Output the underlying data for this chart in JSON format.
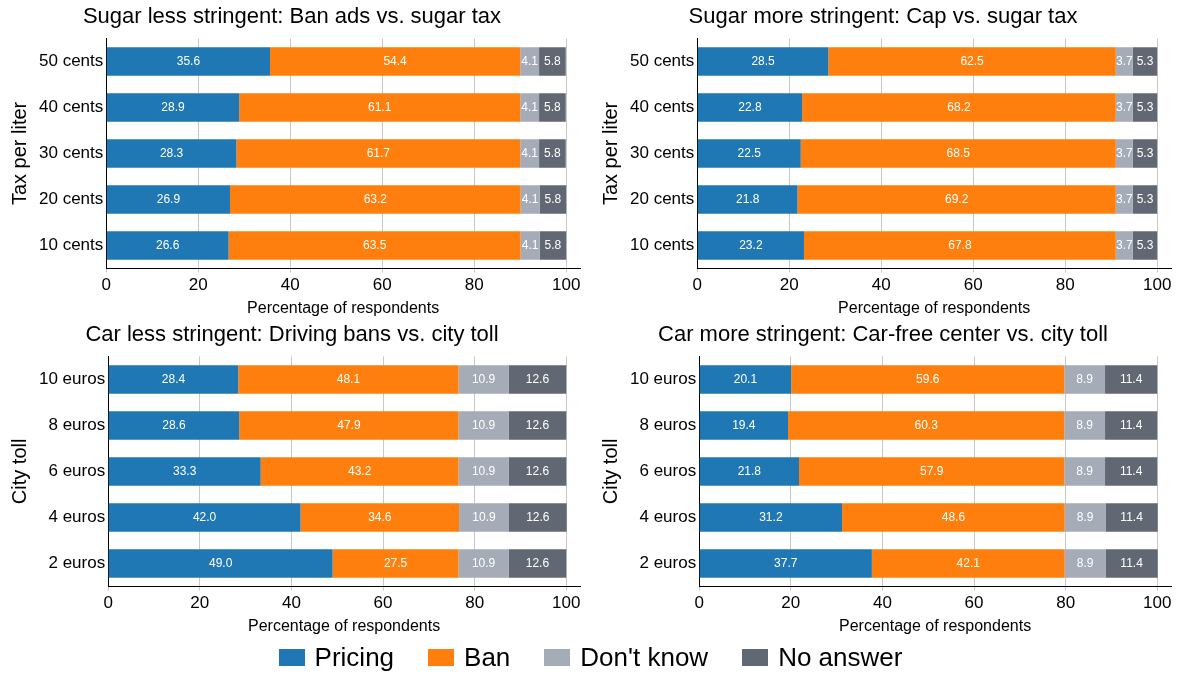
{
  "chart_data": [
    {
      "type": "bar",
      "orientation": "horizontal",
      "stacked": true,
      "title": "Sugar less stringent: Ban ads vs. sugar tax",
      "xlabel": "Percentage of respondents",
      "ylabel": "Tax per liter",
      "categories": [
        "50 cents",
        "40 cents",
        "30 cents",
        "20 cents",
        "10 cents"
      ],
      "xlim": [
        0,
        103
      ],
      "xticks": [
        0,
        20,
        40,
        60,
        80,
        100
      ],
      "grid": "x",
      "data_labels": true,
      "legend": "bottom",
      "series": [
        {
          "name": "Pricing",
          "color": "#1f77b4",
          "values": [
            35.6,
            28.9,
            28.3,
            26.9,
            26.6
          ]
        },
        {
          "name": "Ban",
          "color": "#ff7f0e",
          "values": [
            54.4,
            61.1,
            61.7,
            63.2,
            63.5
          ]
        },
        {
          "name": "Don't know",
          "color": "#a5acb8",
          "values": [
            4.1,
            4.1,
            4.1,
            4.1,
            4.1
          ]
        },
        {
          "name": "No answer",
          "color": "#626873",
          "values": [
            5.8,
            5.8,
            5.8,
            5.8,
            5.8
          ]
        }
      ]
    },
    {
      "type": "bar",
      "orientation": "horizontal",
      "stacked": true,
      "title": "Sugar more stringent: Cap vs. sugar tax",
      "xlabel": "Percentage of respondents",
      "ylabel": "Tax per liter",
      "categories": [
        "50 cents",
        "40 cents",
        "30 cents",
        "20 cents",
        "10 cents"
      ],
      "xlim": [
        0,
        103
      ],
      "xticks": [
        0,
        20,
        40,
        60,
        80,
        100
      ],
      "grid": "x",
      "data_labels": true,
      "series": [
        {
          "color": "#1f77b4",
          "values": [
            28.5,
            22.8,
            22.5,
            21.8,
            23.2
          ]
        },
        {
          "color": "#ff7f0e",
          "values": [
            62.5,
            68.2,
            68.5,
            69.2,
            67.8
          ]
        },
        {
          "color": "#a5acb8",
          "values": [
            3.7,
            3.7,
            3.7,
            3.7,
            3.7
          ]
        },
        {
          "color": "#626873",
          "values": [
            5.3,
            5.3,
            5.3,
            5.3,
            5.3
          ]
        }
      ]
    },
    {
      "type": "bar",
      "orientation": "horizontal",
      "stacked": true,
      "title": "Car less stringent: Driving bans vs. city toll",
      "xlabel": "Percentage of respondents",
      "ylabel": "City toll",
      "categories": [
        "10 euros",
        "8 euros",
        "6 euros",
        "4 euros",
        "2 euros"
      ],
      "xlim": [
        0,
        103
      ],
      "xticks": [
        0,
        20,
        40,
        60,
        80,
        100
      ],
      "grid": "x",
      "data_labels": true,
      "series": [
        {
          "color": "#1f77b4",
          "values": [
            28.4,
            28.6,
            33.3,
            42.0,
            49.0
          ],
          "value_labels": [
            "28.4",
            "28.6",
            "33.3",
            "42.0",
            "49.0"
          ]
        },
        {
          "color": "#ff7f0e",
          "values": [
            48.1,
            47.9,
            43.2,
            34.6,
            27.5
          ]
        },
        {
          "color": "#a5acb8",
          "values": [
            10.9,
            10.9,
            10.9,
            10.9,
            10.9
          ]
        },
        {
          "color": "#626873",
          "values": [
            12.6,
            12.6,
            12.6,
            12.6,
            12.6
          ]
        }
      ]
    },
    {
      "type": "bar",
      "orientation": "horizontal",
      "stacked": true,
      "title": "Car more stringent: Car-free center vs. city toll",
      "xlabel": "Percentage of respondents",
      "ylabel": "City toll",
      "categories": [
        "10 euros",
        "8 euros",
        "6 euros",
        "4 euros",
        "2 euros"
      ],
      "xlim": [
        0,
        103
      ],
      "xticks": [
        0,
        20,
        40,
        60,
        80,
        100
      ],
      "grid": "x",
      "data_labels": true,
      "series": [
        {
          "color": "#1f77b4",
          "values": [
            20.1,
            19.4,
            21.8,
            31.2,
            37.7
          ]
        },
        {
          "color": "#ff7f0e",
          "values": [
            59.6,
            60.3,
            57.9,
            48.6,
            42.1
          ]
        },
        {
          "color": "#a5acb8",
          "values": [
            8.9,
            8.9,
            8.9,
            8.9,
            8.9
          ]
        },
        {
          "color": "#626873",
          "values": [
            11.4,
            11.4,
            11.4,
            11.4,
            11.4
          ]
        }
      ]
    }
  ]
}
